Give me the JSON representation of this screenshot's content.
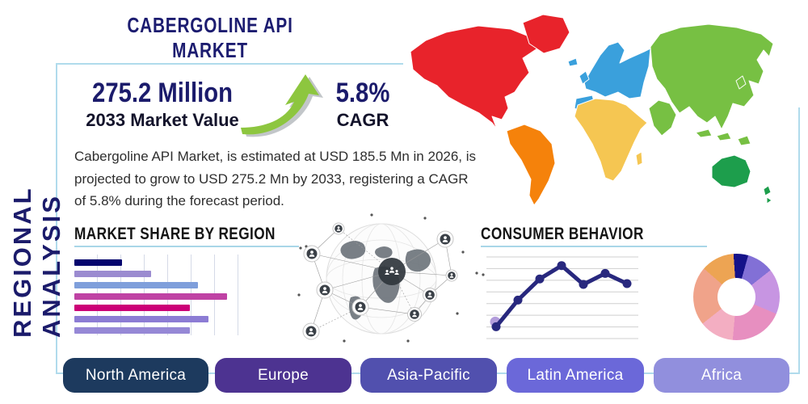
{
  "header": {
    "title": "CABERGOLINE API MARKET",
    "side_label": "REGIONAL ANALYSIS"
  },
  "stats": {
    "value": "275.2 Million",
    "value_caption": "2033 Market Value",
    "cagr": "5.8%",
    "cagr_caption": "CAGR"
  },
  "description": "Cabergoline API Market, is estimated at USD 185.5 Mn in 2026, is projected to grow to USD 275.2 Mn by 2033, registering a CAGR of 5.8% during the forecast period.",
  "colors": {
    "navy": "#1b1b6b",
    "frame": "#b0dbec",
    "underline": "#a9d6e8",
    "arrow_green": "#8dc63f",
    "arrow_shadow": "#8f979c"
  },
  "region_buttons": [
    {
      "label": "North America",
      "color": "#1d3a5e"
    },
    {
      "label": "Europe",
      "color": "#4d3391"
    },
    {
      "label": "Asia-Pacific",
      "color": "#5150ae"
    },
    {
      "label": "Latin America",
      "color": "#6b68d9"
    },
    {
      "label": "Africa",
      "color": "#918fdd"
    }
  ],
  "map": {
    "regions": [
      {
        "id": "north-america",
        "name": "North America",
        "color": "#e8232b"
      },
      {
        "id": "south-america",
        "name": "South America",
        "color": "#f5820b"
      },
      {
        "id": "europe",
        "name": "Europe",
        "color": "#3aa0dc"
      },
      {
        "id": "africa",
        "name": "Africa",
        "color": "#f5c652"
      },
      {
        "id": "asia",
        "name": "Asia",
        "color": "#77c043"
      },
      {
        "id": "oceania",
        "name": "Australia & Oceania",
        "color": "#1d9e4c"
      }
    ]
  },
  "chart_data": [
    {
      "type": "bar",
      "title": "MARKET SHARE BY REGION",
      "orientation": "horizontal",
      "note": "no numeric or category labels shown; values estimated relative to axis (0-100)",
      "values": [
        28,
        45,
        73,
        90,
        68,
        79,
        68
      ],
      "colors": [
        "#05056e",
        "#9b8bd0",
        "#7f9fdb",
        "#bf42a4",
        "#cc0077",
        "#8c7cd4",
        "#9688d6"
      ],
      "xlim": [
        0,
        100
      ],
      "grid": "vertical"
    },
    {
      "type": "line",
      "title": "CONSUMER BEHAVIOR",
      "note": "no axis labels shown; values estimated relative (0-100)",
      "x": [
        1,
        2,
        3,
        4,
        5,
        6,
        7
      ],
      "values": [
        12,
        46,
        73,
        90,
        66,
        80,
        67
      ],
      "ylim": [
        0,
        100
      ],
      "grid": "horizontal",
      "line_color": "#28287e",
      "point_color": "#28287e",
      "first_point_halo": "#b39ddb"
    },
    {
      "type": "pie",
      "variant": "donut",
      "note": "no labels shown; share estimated from arc angles",
      "start_angle_deg": -4,
      "slices": [
        {
          "value": 5.5,
          "color": "#151289"
        },
        {
          "value": 10,
          "color": "#8270d6"
        },
        {
          "value": 17,
          "color": "#c795e2"
        },
        {
          "value": 20,
          "color": "#e78fc0"
        },
        {
          "value": 13,
          "color": "#f3aec2"
        },
        {
          "value": 22,
          "color": "#f0a38a"
        },
        {
          "value": 12.5,
          "color": "#eda453"
        }
      ]
    }
  ]
}
